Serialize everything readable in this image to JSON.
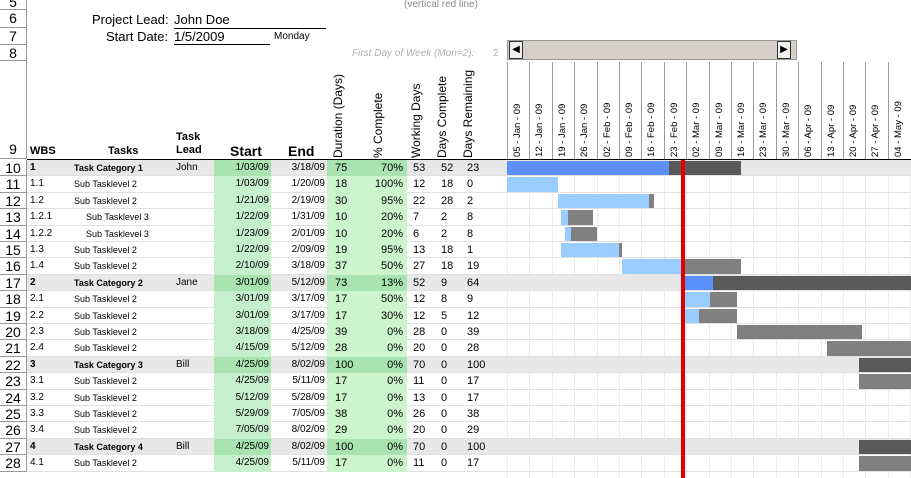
{
  "top_note": "(vertical red line)",
  "project": {
    "lead_label": "Project Lead:",
    "lead_value": "John Doe",
    "start_label": "Start Date:",
    "start_value": "1/5/2009",
    "start_day": "Monday",
    "first_day_label": "First Day of Week (Mon=2):",
    "first_day_value": "2"
  },
  "header_rows": [
    "5",
    "6",
    "7",
    "8",
    "9"
  ],
  "columns": {
    "wbs": "WBS",
    "tasks": "Tasks",
    "task_lead": "Task Lead",
    "start": "Start",
    "end": "End",
    "duration": "Duration (Days)",
    "pct": "% Complete",
    "working": "Working Days",
    "days_complete": "Days Complete",
    "days_remaining": "Days Remaining"
  },
  "week_labels": [
    "05 - Jan - 09",
    "12 - Jan - 09",
    "19 - Jan - 09",
    "26 - Jan - 09",
    "02 - Feb - 09",
    "09 - Feb - 09",
    "16 - Feb - 09",
    "23 - Feb - 09",
    "02 - Mar - 09",
    "09 - Mar - 09",
    "16 - Mar - 09",
    "23 - Mar - 09",
    "30 - Mar - 09",
    "06 - Apr - 09",
    "13 - Apr - 09",
    "20 - Apr - 09",
    "27 - Apr - 09",
    "04 - May - 09"
  ],
  "rows": [
    {
      "num": "10",
      "wbs": "1",
      "task": "Task Category 1",
      "lead": "John",
      "start": "1/03/09",
      "end": "3/18/09",
      "dur": "75",
      "pct": "70%",
      "work": "53",
      "done": "52",
      "rem": "23",
      "cat": true
    },
    {
      "num": "11",
      "wbs": "1.1",
      "task": "Sub Tasklevel 2",
      "lead": "",
      "start": "1/03/09",
      "end": "1/20/09",
      "dur": "18",
      "pct": "100%",
      "work": "12",
      "done": "18",
      "rem": "0",
      "cat": false
    },
    {
      "num": "12",
      "wbs": "1.2",
      "task": "Sub Tasklevel 2",
      "lead": "",
      "start": "1/21/09",
      "end": "2/19/09",
      "dur": "30",
      "pct": "95%",
      "work": "22",
      "done": "28",
      "rem": "2",
      "cat": false
    },
    {
      "num": "13",
      "wbs": "1.2.1",
      "task": "Sub Tasklevel 3",
      "lead": "",
      "start": "1/22/09",
      "end": "1/31/09",
      "dur": "10",
      "pct": "20%",
      "work": "7",
      "done": "2",
      "rem": "8",
      "cat": false,
      "indent": true
    },
    {
      "num": "14",
      "wbs": "1.2.2",
      "task": "Sub Tasklevel 3",
      "lead": "",
      "start": "1/23/09",
      "end": "2/01/09",
      "dur": "10",
      "pct": "20%",
      "work": "6",
      "done": "2",
      "rem": "8",
      "cat": false,
      "indent": true
    },
    {
      "num": "15",
      "wbs": "1.3",
      "task": "Sub Tasklevel 2",
      "lead": "",
      "start": "1/22/09",
      "end": "2/09/09",
      "dur": "19",
      "pct": "95%",
      "work": "13",
      "done": "18",
      "rem": "1",
      "cat": false
    },
    {
      "num": "16",
      "wbs": "1.4",
      "task": "Sub Tasklevel 2",
      "lead": "",
      "start": "2/10/09",
      "end": "3/18/09",
      "dur": "37",
      "pct": "50%",
      "work": "27",
      "done": "18",
      "rem": "19",
      "cat": false
    },
    {
      "num": "17",
      "wbs": "2",
      "task": "Task Category 2",
      "lead": "Jane",
      "start": "3/01/09",
      "end": "5/12/09",
      "dur": "73",
      "pct": "13%",
      "work": "52",
      "done": "9",
      "rem": "64",
      "cat": true
    },
    {
      "num": "18",
      "wbs": "2.1",
      "task": "Sub Tasklevel 2",
      "lead": "",
      "start": "3/01/09",
      "end": "3/17/09",
      "dur": "17",
      "pct": "50%",
      "work": "12",
      "done": "8",
      "rem": "9",
      "cat": false
    },
    {
      "num": "19",
      "wbs": "2.2",
      "task": "Sub Tasklevel 2",
      "lead": "",
      "start": "3/01/09",
      "end": "3/17/09",
      "dur": "17",
      "pct": "30%",
      "work": "12",
      "done": "5",
      "rem": "12",
      "cat": false
    },
    {
      "num": "20",
      "wbs": "2.3",
      "task": "Sub Tasklevel 2",
      "lead": "",
      "start": "3/18/09",
      "end": "4/25/09",
      "dur": "39",
      "pct": "0%",
      "work": "28",
      "done": "0",
      "rem": "39",
      "cat": false
    },
    {
      "num": "21",
      "wbs": "2.4",
      "task": "Sub Tasklevel 2",
      "lead": "",
      "start": "4/15/09",
      "end": "5/12/09",
      "dur": "28",
      "pct": "0%",
      "work": "20",
      "done": "0",
      "rem": "28",
      "cat": false
    },
    {
      "num": "22",
      "wbs": "3",
      "task": "Task Category 3",
      "lead": "Bill",
      "start": "4/25/09",
      "end": "8/02/09",
      "dur": "100",
      "pct": "0%",
      "work": "70",
      "done": "0",
      "rem": "100",
      "cat": true
    },
    {
      "num": "23",
      "wbs": "3.1",
      "task": "Sub Tasklevel 2",
      "lead": "",
      "start": "4/25/09",
      "end": "5/11/09",
      "dur": "17",
      "pct": "0%",
      "work": "11",
      "done": "0",
      "rem": "17",
      "cat": false
    },
    {
      "num": "24",
      "wbs": "3.2",
      "task": "Sub Tasklevel 2",
      "lead": "",
      "start": "5/12/09",
      "end": "5/28/09",
      "dur": "17",
      "pct": "0%",
      "work": "13",
      "done": "0",
      "rem": "17",
      "cat": false
    },
    {
      "num": "25",
      "wbs": "3.3",
      "task": "Sub Tasklevel 2",
      "lead": "",
      "start": "5/29/09",
      "end": "7/05/09",
      "dur": "38",
      "pct": "0%",
      "work": "26",
      "done": "0",
      "rem": "38",
      "cat": false
    },
    {
      "num": "26",
      "wbs": "3.4",
      "task": "Sub Tasklevel 2",
      "lead": "",
      "start": "7/05/09",
      "end": "8/02/09",
      "dur": "29",
      "pct": "0%",
      "work": "20",
      "done": "0",
      "rem": "29",
      "cat": false
    },
    {
      "num": "27",
      "wbs": "4",
      "task": "Task Category 4",
      "lead": "Bill",
      "start": "4/25/09",
      "end": "8/02/09",
      "dur": "100",
      "pct": "0%",
      "work": "70",
      "done": "0",
      "rem": "100",
      "cat": true
    },
    {
      "num": "28",
      "wbs": "4.1",
      "task": "Sub Tasklevel 2",
      "lead": "",
      "start": "4/25/09",
      "end": "5/11/09",
      "dur": "17",
      "pct": "0%",
      "work": "11",
      "done": "0",
      "rem": "17",
      "cat": false
    }
  ],
  "colors": {
    "date_fill": "#c6efce",
    "date_fill_cat": "#a9e4b0",
    "dur_fill": "#ccf5cc",
    "cat_row": "#e8e8e8",
    "bar_done_cat": "#5b8ff9",
    "bar_done": "#99ccff",
    "bar_remaining": "#808080",
    "bar_remaining_cat": "#595959",
    "today_line": "#e00000"
  }
}
